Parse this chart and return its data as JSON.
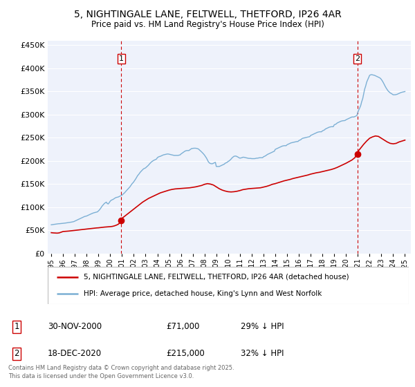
{
  "title": "5, NIGHTINGALE LANE, FELTWELL, THETFORD, IP26 4AR",
  "subtitle": "Price paid vs. HM Land Registry's House Price Index (HPI)",
  "legend_house": "5, NIGHTINGALE LANE, FELTWELL, THETFORD, IP26 4AR (detached house)",
  "legend_hpi": "HPI: Average price, detached house, King's Lynn and West Norfolk",
  "footer": "Contains HM Land Registry data © Crown copyright and database right 2025.\nThis data is licensed under the Open Government Licence v3.0.",
  "house_color": "#cc0000",
  "hpi_color": "#7bafd4",
  "marker1_date": 2000.92,
  "marker1_value": 71000,
  "marker2_date": 2020.96,
  "marker2_value": 215000,
  "table_row1": [
    "1",
    "30-NOV-2000",
    "£71,000",
    "29% ↓ HPI"
  ],
  "table_row2": [
    "2",
    "18-DEC-2020",
    "£215,000",
    "32% ↓ HPI"
  ],
  "ylim": [
    0,
    460000
  ],
  "xlim_start": 1994.7,
  "xlim_end": 2025.5,
  "background_color": "#ffffff",
  "plot_bg_color": "#eef2fb",
  "grid_color": "#ffffff",
  "hpi_data_x": [
    1995.0,
    1995.08,
    1995.17,
    1995.25,
    1995.33,
    1995.42,
    1995.5,
    1995.58,
    1995.67,
    1995.75,
    1995.83,
    1995.92,
    1996.0,
    1996.08,
    1996.17,
    1996.25,
    1996.33,
    1996.42,
    1996.5,
    1996.58,
    1996.67,
    1996.75,
    1996.83,
    1996.92,
    1997.0,
    1997.08,
    1997.17,
    1997.25,
    1997.33,
    1997.42,
    1997.5,
    1997.58,
    1997.67,
    1997.75,
    1997.83,
    1997.92,
    1998.0,
    1998.08,
    1998.17,
    1998.25,
    1998.33,
    1998.42,
    1998.5,
    1998.58,
    1998.67,
    1998.75,
    1998.83,
    1998.92,
    1999.0,
    1999.08,
    1999.17,
    1999.25,
    1999.33,
    1999.42,
    1999.5,
    1999.58,
    1999.67,
    1999.75,
    1999.83,
    1999.92,
    2000.0,
    2000.08,
    2000.17,
    2000.25,
    2000.33,
    2000.42,
    2000.5,
    2000.58,
    2000.67,
    2000.75,
    2000.83,
    2000.92,
    2001.0,
    2001.08,
    2001.17,
    2001.25,
    2001.33,
    2001.42,
    2001.5,
    2001.58,
    2001.67,
    2001.75,
    2001.83,
    2001.92,
    2002.0,
    2002.08,
    2002.17,
    2002.25,
    2002.33,
    2002.42,
    2002.5,
    2002.58,
    2002.67,
    2002.75,
    2002.83,
    2002.92,
    2003.0,
    2003.08,
    2003.17,
    2003.25,
    2003.33,
    2003.42,
    2003.5,
    2003.58,
    2003.67,
    2003.75,
    2003.83,
    2003.92,
    2004.0,
    2004.08,
    2004.17,
    2004.25,
    2004.33,
    2004.42,
    2004.5,
    2004.58,
    2004.67,
    2004.75,
    2004.83,
    2004.92,
    2005.0,
    2005.08,
    2005.17,
    2005.25,
    2005.33,
    2005.42,
    2005.5,
    2005.58,
    2005.67,
    2005.75,
    2005.83,
    2005.92,
    2006.0,
    2006.08,
    2006.17,
    2006.25,
    2006.33,
    2006.42,
    2006.5,
    2006.58,
    2006.67,
    2006.75,
    2006.83,
    2006.92,
    2007.0,
    2007.08,
    2007.17,
    2007.25,
    2007.33,
    2007.42,
    2007.5,
    2007.58,
    2007.67,
    2007.75,
    2007.83,
    2007.92,
    2008.0,
    2008.08,
    2008.17,
    2008.25,
    2008.33,
    2008.42,
    2008.5,
    2008.58,
    2008.67,
    2008.75,
    2008.83,
    2008.92,
    2009.0,
    2009.08,
    2009.17,
    2009.25,
    2009.33,
    2009.42,
    2009.5,
    2009.58,
    2009.67,
    2009.75,
    2009.83,
    2009.92,
    2010.0,
    2010.08,
    2010.17,
    2010.25,
    2010.33,
    2010.42,
    2010.5,
    2010.58,
    2010.67,
    2010.75,
    2010.83,
    2010.92,
    2011.0,
    2011.08,
    2011.17,
    2011.25,
    2011.33,
    2011.42,
    2011.5,
    2011.58,
    2011.67,
    2011.75,
    2011.83,
    2011.92,
    2012.0,
    2012.08,
    2012.17,
    2012.25,
    2012.33,
    2012.42,
    2012.5,
    2012.58,
    2012.67,
    2012.75,
    2012.83,
    2012.92,
    2013.0,
    2013.08,
    2013.17,
    2013.25,
    2013.33,
    2013.42,
    2013.5,
    2013.58,
    2013.67,
    2013.75,
    2013.83,
    2013.92,
    2014.0,
    2014.08,
    2014.17,
    2014.25,
    2014.33,
    2014.42,
    2014.5,
    2014.58,
    2014.67,
    2014.75,
    2014.83,
    2014.92,
    2015.0,
    2015.08,
    2015.17,
    2015.25,
    2015.33,
    2015.42,
    2015.5,
    2015.58,
    2015.67,
    2015.75,
    2015.83,
    2015.92,
    2016.0,
    2016.08,
    2016.17,
    2016.25,
    2016.33,
    2016.42,
    2016.5,
    2016.58,
    2016.67,
    2016.75,
    2016.83,
    2016.92,
    2017.0,
    2017.08,
    2017.17,
    2017.25,
    2017.33,
    2017.42,
    2017.5,
    2017.58,
    2017.67,
    2017.75,
    2017.83,
    2017.92,
    2018.0,
    2018.08,
    2018.17,
    2018.25,
    2018.33,
    2018.42,
    2018.5,
    2018.58,
    2018.67,
    2018.75,
    2018.83,
    2018.92,
    2019.0,
    2019.08,
    2019.17,
    2019.25,
    2019.33,
    2019.42,
    2019.5,
    2019.58,
    2019.67,
    2019.75,
    2019.83,
    2019.92,
    2020.0,
    2020.08,
    2020.17,
    2020.25,
    2020.33,
    2020.42,
    2020.5,
    2020.58,
    2020.67,
    2020.75,
    2020.83,
    2020.92,
    2021.0,
    2021.08,
    2021.17,
    2021.25,
    2021.33,
    2021.42,
    2021.5,
    2021.58,
    2021.67,
    2021.75,
    2021.83,
    2021.92,
    2022.0,
    2022.08,
    2022.17,
    2022.25,
    2022.33,
    2022.42,
    2022.5,
    2022.58,
    2022.67,
    2022.75,
    2022.83,
    2022.92,
    2023.0,
    2023.08,
    2023.17,
    2023.25,
    2023.33,
    2023.42,
    2023.5,
    2023.58,
    2023.67,
    2023.75,
    2023.83,
    2023.92,
    2024.0,
    2024.08,
    2024.17,
    2024.25,
    2024.33,
    2024.42,
    2024.5,
    2024.58,
    2024.67,
    2024.75,
    2024.83,
    2024.92,
    2025.0
  ],
  "hpi_data_y": [
    62000,
    62300,
    62700,
    63000,
    63300,
    63700,
    64000,
    64200,
    64300,
    64500,
    64700,
    64900,
    65000,
    65300,
    65700,
    66000,
    66300,
    66700,
    67000,
    67300,
    67700,
    68000,
    68500,
    69000,
    70000,
    71000,
    72000,
    73000,
    74000,
    75000,
    76000,
    77000,
    78000,
    79000,
    80000,
    80500,
    81000,
    82000,
    83000,
    84000,
    85000,
    86000,
    87000,
    87700,
    88300,
    89000,
    89500,
    90000,
    92000,
    94000,
    97000,
    100000,
    103000,
    105500,
    108000,
    109500,
    111000,
    108000,
    107000,
    110000,
    113000,
    115000,
    116000,
    117000,
    118500,
    120000,
    121000,
    121500,
    122000,
    123000,
    124000,
    125000,
    126000,
    128000,
    130000,
    132000,
    134500,
    137000,
    139000,
    141500,
    144000,
    147000,
    150000,
    152500,
    155000,
    158000,
    161500,
    165000,
    168500,
    171000,
    174000,
    176500,
    179000,
    181000,
    183000,
    184000,
    185000,
    187000,
    189000,
    191000,
    193500,
    196000,
    198000,
    199500,
    201000,
    202000,
    203000,
    204000,
    207000,
    208500,
    209500,
    210000,
    211000,
    212000,
    213000,
    213500,
    214000,
    214500,
    215000,
    215000,
    214500,
    214000,
    213500,
    213000,
    212500,
    212000,
    212000,
    212000,
    212000,
    212000,
    212500,
    213000,
    215000,
    216500,
    218000,
    219500,
    221000,
    222000,
    222500,
    222500,
    222500,
    224000,
    225500,
    227000,
    227000,
    227500,
    227500,
    227500,
    227000,
    226500,
    225500,
    223500,
    221500,
    219500,
    217500,
    215000,
    212500,
    209500,
    206000,
    202000,
    198000,
    195500,
    194500,
    194000,
    194000,
    195000,
    196000,
    197000,
    188000,
    188000,
    188000,
    188000,
    189000,
    190000,
    191000,
    192000,
    193000,
    195000,
    196000,
    197000,
    199000,
    200000,
    202000,
    204000,
    206500,
    208500,
    210000,
    210500,
    210500,
    209500,
    208500,
    207000,
    206000,
    206500,
    207000,
    208000,
    208000,
    207500,
    207000,
    206500,
    206000,
    205500,
    205500,
    205500,
    205000,
    205000,
    205000,
    205000,
    205500,
    206000,
    206000,
    206500,
    207000,
    207000,
    207000,
    207000,
    209000,
    210000,
    211000,
    212500,
    214000,
    215000,
    216000,
    217000,
    218000,
    219000,
    220000,
    221000,
    225000,
    226000,
    227000,
    228000,
    229000,
    230000,
    231000,
    232000,
    232500,
    233000,
    233000,
    233000,
    235000,
    236000,
    237000,
    238000,
    239000,
    239500,
    240000,
    240500,
    241000,
    241500,
    242000,
    242000,
    244000,
    245000,
    246000,
    248000,
    249000,
    249500,
    250000,
    250500,
    251000,
    251500,
    252000,
    252500,
    255000,
    256000,
    257000,
    258000,
    259000,
    260000,
    261000,
    262000,
    262500,
    263000,
    263000,
    263000,
    265000,
    266000,
    267000,
    269000,
    270000,
    271000,
    272000,
    273000,
    273500,
    274000,
    274000,
    274000,
    278000,
    279000,
    280000,
    282000,
    283000,
    284000,
    285000,
    286000,
    286500,
    287000,
    287000,
    287500,
    289000,
    290000,
    291000,
    292000,
    293000,
    294000,
    295000,
    295000,
    295000,
    296000,
    297000,
    298000,
    305000,
    310000,
    315000,
    320000,
    328000,
    335000,
    345000,
    355000,
    362000,
    370000,
    375000,
    380000,
    385000,
    386000,
    386500,
    386000,
    385500,
    385000,
    384000,
    383000,
    382000,
    381000,
    380000,
    378500,
    376000,
    373000,
    369000,
    365000,
    361000,
    357000,
    354000,
    351000,
    349000,
    347000,
    346000,
    344500,
    343000,
    343000,
    343000,
    343500,
    344000,
    345000,
    346000,
    347000,
    348000,
    348500,
    349000,
    349500,
    350000
  ],
  "house_data_x": [
    1995.0,
    1995.17,
    1995.33,
    1995.5,
    1995.67,
    1995.83,
    1996.0,
    1996.17,
    1996.33,
    1996.5,
    1996.67,
    1996.83,
    1997.0,
    1997.17,
    1997.33,
    1997.5,
    1997.67,
    1997.83,
    1998.0,
    1998.17,
    1998.33,
    1998.5,
    1998.67,
    1998.83,
    1999.0,
    1999.17,
    1999.33,
    1999.5,
    1999.67,
    1999.83,
    2000.0,
    2000.17,
    2000.33,
    2000.5,
    2000.67,
    2000.83,
    2000.92,
    2001.0,
    2001.25,
    2001.5,
    2001.75,
    2002.0,
    2002.25,
    2002.5,
    2002.75,
    2003.0,
    2003.25,
    2003.5,
    2003.75,
    2004.0,
    2004.25,
    2004.5,
    2004.75,
    2005.0,
    2005.25,
    2005.5,
    2005.75,
    2006.0,
    2006.25,
    2006.5,
    2006.75,
    2007.0,
    2007.25,
    2007.5,
    2007.75,
    2008.0,
    2008.25,
    2008.5,
    2008.75,
    2009.0,
    2009.25,
    2009.5,
    2009.75,
    2010.0,
    2010.25,
    2010.5,
    2010.75,
    2011.0,
    2011.25,
    2011.5,
    2011.75,
    2012.0,
    2012.25,
    2012.5,
    2012.75,
    2013.0,
    2013.25,
    2013.5,
    2013.75,
    2014.0,
    2014.25,
    2014.5,
    2014.75,
    2015.0,
    2015.25,
    2015.5,
    2015.75,
    2016.0,
    2016.25,
    2016.5,
    2016.75,
    2017.0,
    2017.25,
    2017.5,
    2017.75,
    2018.0,
    2018.25,
    2018.5,
    2018.75,
    2019.0,
    2019.25,
    2019.5,
    2019.75,
    2020.0,
    2020.25,
    2020.5,
    2020.75,
    2020.92,
    2021.0,
    2021.25,
    2021.5,
    2021.75,
    2022.0,
    2022.25,
    2022.5,
    2022.75,
    2023.0,
    2023.25,
    2023.5,
    2023.75,
    2024.0,
    2024.25,
    2024.5,
    2024.75,
    2025.0
  ],
  "house_data_y": [
    45000,
    44500,
    44200,
    44000,
    44500,
    46000,
    47500,
    47800,
    48000,
    48500,
    49000,
    49500,
    50000,
    50500,
    51000,
    51500,
    52000,
    52500,
    53000,
    53500,
    54000,
    54500,
    55000,
    55200,
    55500,
    56000,
    56500,
    57000,
    57300,
    57700,
    58000,
    58500,
    59500,
    61000,
    63000,
    66500,
    71000,
    76000,
    81000,
    86000,
    91000,
    96000,
    101000,
    106000,
    111000,
    115000,
    119000,
    122000,
    125000,
    128000,
    131000,
    133000,
    135000,
    137000,
    138500,
    139500,
    140000,
    140500,
    141000,
    141500,
    142000,
    143000,
    144000,
    145500,
    147000,
    149500,
    151000,
    150000,
    148000,
    144000,
    140000,
    137000,
    135000,
    133500,
    133000,
    133500,
    134500,
    136000,
    138000,
    139000,
    140000,
    140500,
    141000,
    141500,
    142000,
    143500,
    145000,
    147000,
    149500,
    151000,
    153000,
    155000,
    157000,
    158500,
    160000,
    162000,
    163500,
    165000,
    166500,
    168000,
    169500,
    171500,
    173000,
    174500,
    175500,
    177000,
    178500,
    180000,
    181500,
    183500,
    186000,
    189000,
    192000,
    195000,
    198500,
    202000,
    207000,
    215000,
    220000,
    228000,
    236000,
    243000,
    249000,
    252000,
    254000,
    253000,
    249000,
    245000,
    241000,
    238000,
    237000,
    238000,
    241000,
    243000,
    245000
  ]
}
